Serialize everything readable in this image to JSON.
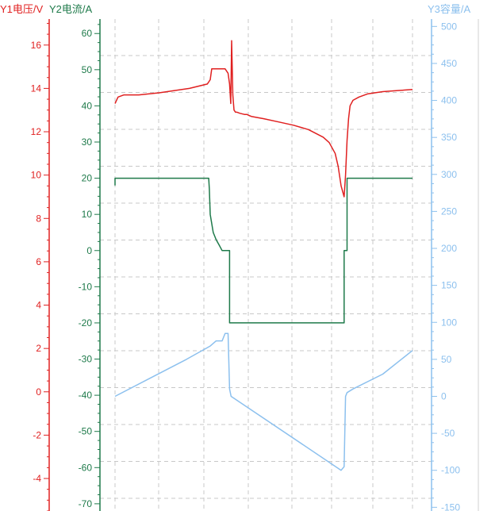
{
  "chart_data": {
    "type": "line",
    "grid": true,
    "axes": {
      "y1": {
        "title": "Y1电压/V",
        "color": "#e02020",
        "range": [
          -5.5,
          17.2
        ],
        "ticks": [
          -4,
          -2,
          0,
          2,
          4,
          6,
          8,
          10,
          12,
          14,
          16
        ]
      },
      "y2": {
        "title": "Y2电流/A",
        "color": "#1e7a4a",
        "range": [
          -72,
          64
        ],
        "ticks": [
          -70,
          -60,
          -50,
          -40,
          -30,
          -20,
          -10,
          0,
          10,
          20,
          30,
          40,
          50,
          60
        ]
      },
      "y3": {
        "title": "Y3容量/A",
        "color": "#8cc0ee",
        "range": [
          -155,
          510
        ],
        "ticks": [
          -150,
          -100,
          -50,
          0,
          50,
          100,
          150,
          200,
          250,
          300,
          350,
          400,
          450,
          500
        ]
      }
    },
    "series": [
      {
        "axis": "y1",
        "color": "#e02020",
        "x": [
          0,
          1,
          3,
          8,
          15,
          25,
          31,
          32,
          32.5,
          33,
          34,
          36,
          37,
          38,
          38.5,
          38.9,
          39.2,
          39.6,
          40,
          40.5,
          41,
          42,
          43.5,
          44,
          44.3,
          44.6,
          45,
          46,
          50,
          55,
          60,
          65,
          70,
          72,
          74,
          75,
          76,
          77,
          77.5,
          78,
          78.5,
          79,
          80,
          82,
          85,
          90,
          95,
          100
        ],
        "y": [
          13.3,
          13.6,
          13.7,
          13.7,
          13.8,
          14.0,
          14.2,
          14.4,
          14.9,
          14.9,
          14.9,
          14.9,
          14.9,
          14.7,
          14.2,
          13.3,
          16.2,
          13.7,
          13.0,
          12.9,
          12.9,
          12.85,
          12.8,
          12.8,
          12.8,
          12.78,
          12.75,
          12.7,
          12.6,
          12.45,
          12.3,
          12.1,
          11.75,
          11.5,
          11.0,
          10.4,
          9.5,
          9.0,
          10.0,
          11.6,
          12.6,
          13.2,
          13.45,
          13.6,
          13.75,
          13.85,
          13.9,
          13.95
        ]
      },
      {
        "axis": "y2",
        "color": "#1e7a4a",
        "x": [
          0,
          0,
          31,
          31.5,
          31.7,
          32,
          33,
          34,
          35,
          36,
          37,
          37.3,
          37.5,
          37.5,
          38,
          38.5,
          38.5,
          39,
          39,
          76,
          76,
          77,
          77,
          78,
          78,
          100
        ],
        "y": [
          18,
          20,
          20,
          20,
          17,
          10,
          5,
          3,
          1.5,
          0,
          0,
          0,
          0,
          0,
          0,
          0,
          -20,
          -20,
          -20,
          -20,
          -20,
          -20,
          0,
          0,
          20,
          20
        ]
      },
      {
        "axis": "y3",
        "color": "#8cc0ee",
        "x": [
          0,
          12,
          24,
          32,
          34,
          35,
          36,
          36.5,
          37,
          38,
          38.5,
          39,
          76,
          77,
          77.5,
          78,
          80,
          90,
          100
        ],
        "y": [
          0,
          25,
          50,
          68,
          75,
          75,
          75,
          80,
          85,
          85,
          10,
          0,
          -100,
          -95,
          0,
          5,
          10,
          30,
          62
        ]
      }
    ]
  }
}
